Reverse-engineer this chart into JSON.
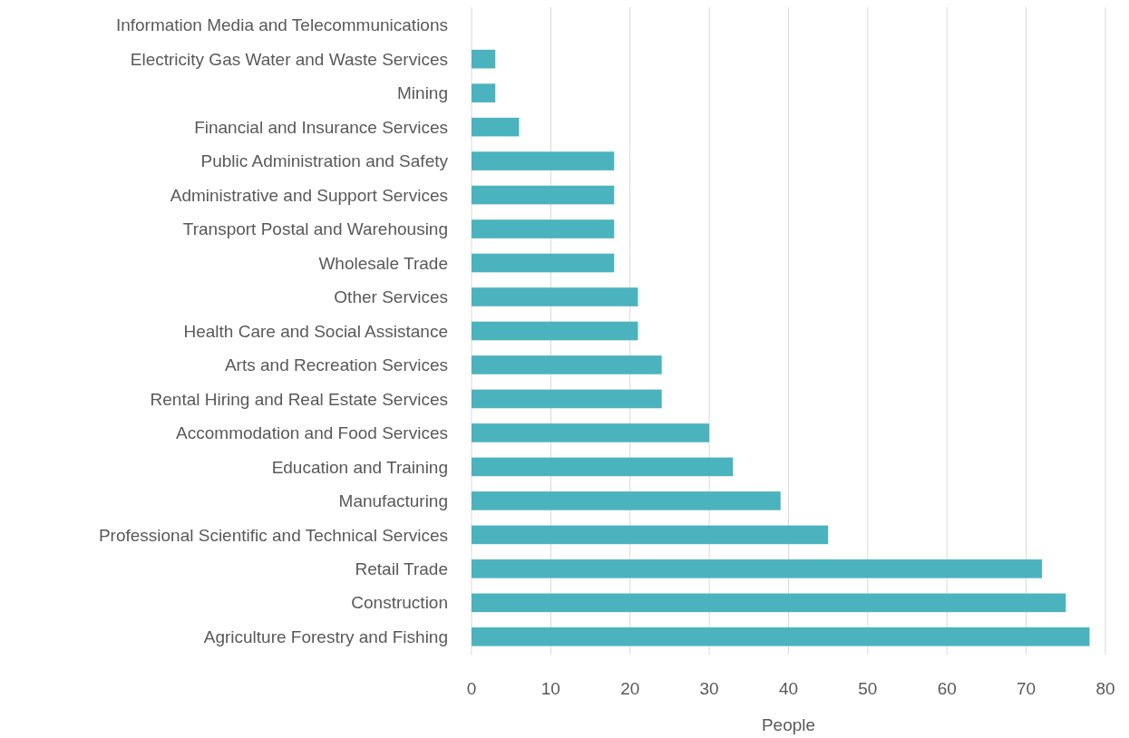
{
  "chart_data": {
    "type": "bar",
    "orientation": "horizontal",
    "xlabel": "People",
    "categories": [
      "Information Media and Telecommunications",
      "Electricity Gas Water and Waste Services",
      "Mining",
      "Financial and Insurance Services",
      "Public Administration and Safety",
      "Administrative and Support Services",
      "Transport Postal and Warehousing",
      "Wholesale Trade",
      "Other Services",
      "Health Care and Social Assistance",
      "Arts and Recreation Services",
      "Rental Hiring and Real Estate Services",
      "Accommodation and Food Services",
      "Education and Training",
      "Manufacturing",
      "Professional Scientific and Technical Services",
      "Retail Trade",
      "Construction",
      "Agriculture Forestry and Fishing"
    ],
    "values": [
      0,
      3,
      3,
      6,
      18,
      18,
      18,
      18,
      21,
      21,
      24,
      24,
      30,
      33,
      39,
      45,
      72,
      75,
      78
    ],
    "color": "#4bb3be",
    "xlim": [
      0,
      80
    ],
    "xticks": [
      0,
      10,
      20,
      30,
      40,
      50,
      60,
      70,
      80
    ],
    "grid": "x"
  }
}
